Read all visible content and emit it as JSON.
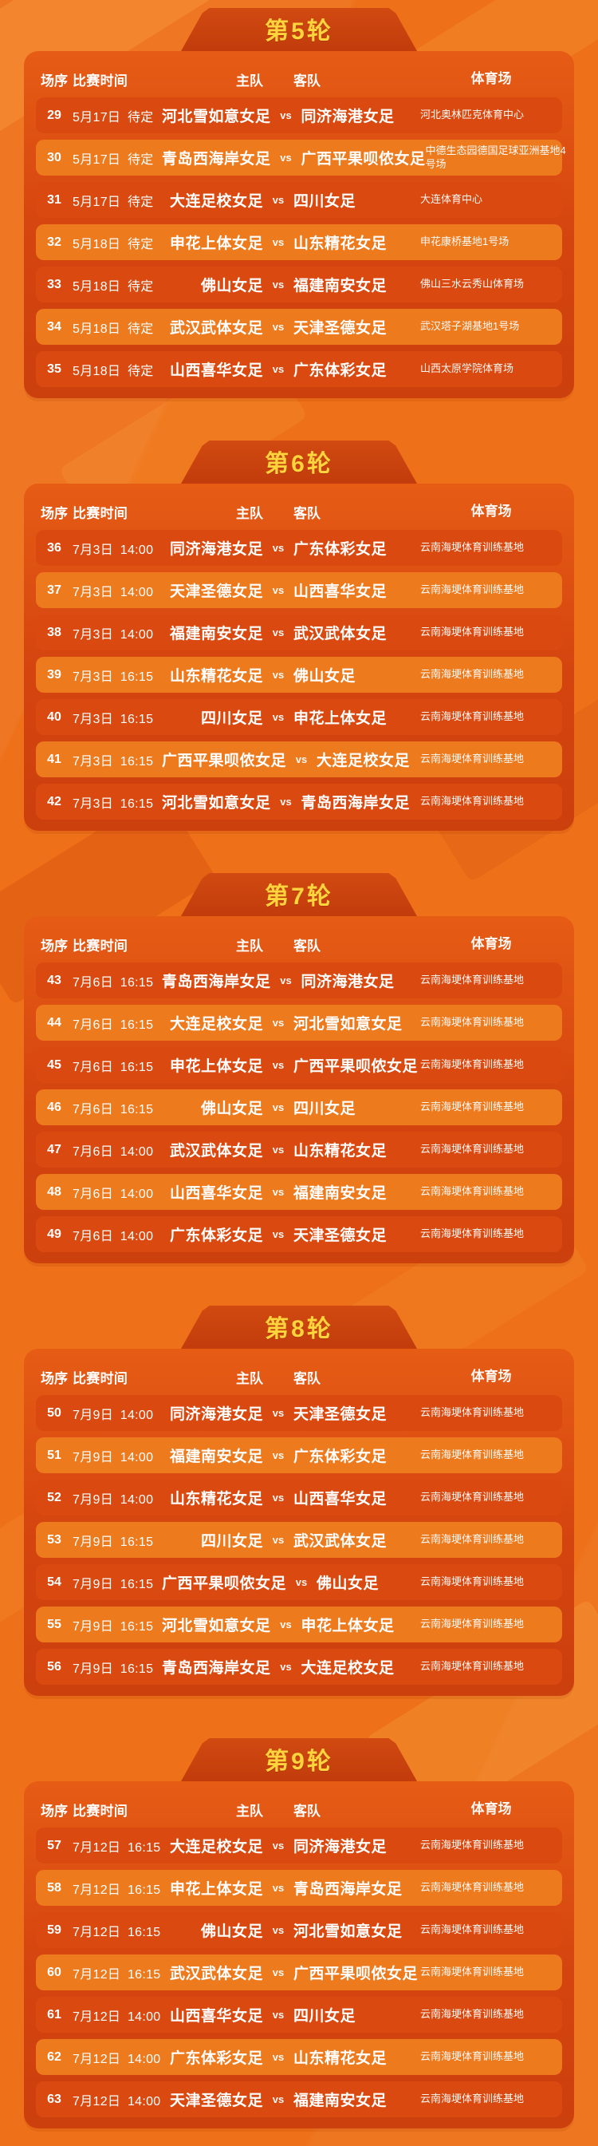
{
  "columns": {
    "seq": "场序",
    "time": "比赛时间",
    "home": "主队",
    "away": "客队",
    "stadium": "体育场"
  },
  "vs_label": "vs",
  "colors": {
    "background": "#ee7018",
    "banner": "#c8400e",
    "card_top": "#e65c15",
    "card_bottom": "#cc400e",
    "row_dark": "#da4a10",
    "row_light": "#ee7a1e",
    "round_title": "#ffd43c",
    "text": "#ffffff"
  },
  "rounds": [
    {
      "title": "第5轮",
      "matches": [
        {
          "seq": "29",
          "time": "5月17日 待定",
          "home": "河北雪如意女足",
          "away": "同济海港女足",
          "stadium": "河北奥林匹克体育中心"
        },
        {
          "seq": "30",
          "time": "5月17日 待定",
          "home": "青岛西海岸女足",
          "away": "广西平果呗侬女足",
          "stadium": "中德生态园德国足球亚洲基地4号场"
        },
        {
          "seq": "31",
          "time": "5月17日 待定",
          "home": "大连足校女足",
          "away": "四川女足",
          "stadium": "大连体育中心"
        },
        {
          "seq": "32",
          "time": "5月18日 待定",
          "home": "申花上体女足",
          "away": "山东精花女足",
          "stadium": "申花康桥基地1号场"
        },
        {
          "seq": "33",
          "time": "5月18日 待定",
          "home": "佛山女足",
          "away": "福建南安女足",
          "stadium": "佛山三水云秀山体育场"
        },
        {
          "seq": "34",
          "time": "5月18日 待定",
          "home": "武汉武体女足",
          "away": "天津圣德女足",
          "stadium": "武汉塔子湖基地1号场"
        },
        {
          "seq": "35",
          "time": "5月18日 待定",
          "home": "山西喜华女足",
          "away": "广东体彩女足",
          "stadium": "山西太原学院体育场"
        }
      ]
    },
    {
      "title": "第6轮",
      "matches": [
        {
          "seq": "36",
          "time": "7月3日 14:00",
          "home": "同济海港女足",
          "away": "广东体彩女足",
          "stadium": "云南海埂体育训练基地"
        },
        {
          "seq": "37",
          "time": "7月3日 14:00",
          "home": "天津圣德女足",
          "away": "山西喜华女足",
          "stadium": "云南海埂体育训练基地"
        },
        {
          "seq": "38",
          "time": "7月3日 14:00",
          "home": "福建南安女足",
          "away": "武汉武体女足",
          "stadium": "云南海埂体育训练基地"
        },
        {
          "seq": "39",
          "time": "7月3日 16:15",
          "home": "山东精花女足",
          "away": "佛山女足",
          "stadium": "云南海埂体育训练基地"
        },
        {
          "seq": "40",
          "time": "7月3日 16:15",
          "home": "四川女足",
          "away": "申花上体女足",
          "stadium": "云南海埂体育训练基地"
        },
        {
          "seq": "41",
          "time": "7月3日 16:15",
          "home": "广西平果呗侬女足",
          "away": "大连足校女足",
          "stadium": "云南海埂体育训练基地"
        },
        {
          "seq": "42",
          "time": "7月3日 16:15",
          "home": "河北雪如意女足",
          "away": "青岛西海岸女足",
          "stadium": "云南海埂体育训练基地"
        }
      ]
    },
    {
      "title": "第7轮",
      "matches": [
        {
          "seq": "43",
          "time": "7月6日 16:15",
          "home": "青岛西海岸女足",
          "away": "同济海港女足",
          "stadium": "云南海埂体育训练基地"
        },
        {
          "seq": "44",
          "time": "7月6日 16:15",
          "home": "大连足校女足",
          "away": "河北雪如意女足",
          "stadium": "云南海埂体育训练基地"
        },
        {
          "seq": "45",
          "time": "7月6日 16:15",
          "home": "申花上体女足",
          "away": "广西平果呗侬女足",
          "stadium": "云南海埂体育训练基地"
        },
        {
          "seq": "46",
          "time": "7月6日 16:15",
          "home": "佛山女足",
          "away": "四川女足",
          "stadium": "云南海埂体育训练基地"
        },
        {
          "seq": "47",
          "time": "7月6日 14:00",
          "home": "武汉武体女足",
          "away": "山东精花女足",
          "stadium": "云南海埂体育训练基地"
        },
        {
          "seq": "48",
          "time": "7月6日 14:00",
          "home": "山西喜华女足",
          "away": "福建南安女足",
          "stadium": "云南海埂体育训练基地"
        },
        {
          "seq": "49",
          "time": "7月6日 14:00",
          "home": "广东体彩女足",
          "away": "天津圣德女足",
          "stadium": "云南海埂体育训练基地"
        }
      ]
    },
    {
      "title": "第8轮",
      "matches": [
        {
          "seq": "50",
          "time": "7月9日 14:00",
          "home": "同济海港女足",
          "away": "天津圣德女足",
          "stadium": "云南海埂体育训练基地"
        },
        {
          "seq": "51",
          "time": "7月9日 14:00",
          "home": "福建南安女足",
          "away": "广东体彩女足",
          "stadium": "云南海埂体育训练基地"
        },
        {
          "seq": "52",
          "time": "7月9日 14:00",
          "home": "山东精花女足",
          "away": "山西喜华女足",
          "stadium": "云南海埂体育训练基地"
        },
        {
          "seq": "53",
          "time": "7月9日 16:15",
          "home": "四川女足",
          "away": "武汉武体女足",
          "stadium": "云南海埂体育训练基地"
        },
        {
          "seq": "54",
          "time": "7月9日 16:15",
          "home": "广西平果呗侬女足",
          "away": "佛山女足",
          "stadium": "云南海埂体育训练基地"
        },
        {
          "seq": "55",
          "time": "7月9日 16:15",
          "home": "河北雪如意女足",
          "away": "申花上体女足",
          "stadium": "云南海埂体育训练基地"
        },
        {
          "seq": "56",
          "time": "7月9日 16:15",
          "home": "青岛西海岸女足",
          "away": "大连足校女足",
          "stadium": "云南海埂体育训练基地"
        }
      ]
    },
    {
      "title": "第9轮",
      "matches": [
        {
          "seq": "57",
          "time": "7月12日 16:15",
          "home": "大连足校女足",
          "away": "同济海港女足",
          "stadium": "云南海埂体育训练基地"
        },
        {
          "seq": "58",
          "time": "7月12日 16:15",
          "home": "申花上体女足",
          "away": "青岛西海岸女足",
          "stadium": "云南海埂体育训练基地"
        },
        {
          "seq": "59",
          "time": "7月12日 16:15",
          "home": "佛山女足",
          "away": "河北雪如意女足",
          "stadium": "云南海埂体育训练基地"
        },
        {
          "seq": "60",
          "time": "7月12日 16:15",
          "home": "武汉武体女足",
          "away": "广西平果呗侬女足",
          "stadium": "云南海埂体育训练基地"
        },
        {
          "seq": "61",
          "time": "7月12日 14:00",
          "home": "山西喜华女足",
          "away": "四川女足",
          "stadium": "云南海埂体育训练基地"
        },
        {
          "seq": "62",
          "time": "7月12日 14:00",
          "home": "广东体彩女足",
          "away": "山东精花女足",
          "stadium": "云南海埂体育训练基地"
        },
        {
          "seq": "63",
          "time": "7月12日 14:00",
          "home": "天津圣德女足",
          "away": "福建南安女足",
          "stadium": "云南海埂体育训练基地"
        }
      ]
    }
  ]
}
